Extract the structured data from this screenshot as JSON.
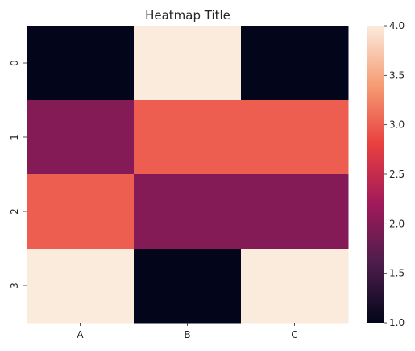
{
  "chart_data": {
    "type": "heatmap",
    "title": "Heatmap Title",
    "x_categories": [
      "A",
      "B",
      "C"
    ],
    "y_categories": [
      "0",
      "1",
      "2",
      "3"
    ],
    "values": [
      [
        1,
        4,
        1
      ],
      [
        2,
        3,
        3
      ],
      [
        3,
        2,
        2
      ],
      [
        4,
        1,
        4
      ]
    ],
    "colorbar": {
      "range": [
        1.0,
        4.0
      ],
      "ticks": [
        "1.0",
        "1.5",
        "2.0",
        "2.5",
        "3.0",
        "3.5",
        "4.0"
      ]
    },
    "colormap": "rocket",
    "colormap_stops": [
      "#03051a",
      "#4c1d4b",
      "#a11a5b",
      "#e83f3f",
      "#f69c73",
      "#faebdd"
    ]
  }
}
